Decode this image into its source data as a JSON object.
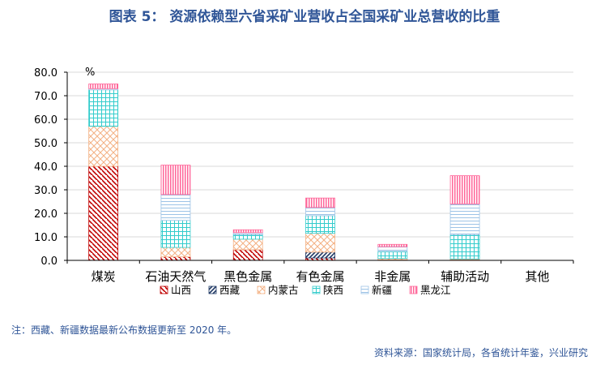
{
  "title": "图表 5： 资源依赖型六省采矿业营收占全国采矿业总营收的比重",
  "note": "注：西藏、新疆数据最新公布数据更新至 2020 年。",
  "source": "资料来源：国家统计局，各省统计年鉴，兴业研究",
  "chart_data": {
    "type": "bar",
    "stacked": true,
    "unit_label": "%",
    "ylim": [
      0,
      80
    ],
    "yticks": [
      "0.0",
      "10.0",
      "20.0",
      "30.0",
      "40.0",
      "50.0",
      "60.0",
      "70.0",
      "80.0"
    ],
    "grid": true,
    "legend_position": "bottom",
    "categories": [
      "煤炭",
      "石油天然气",
      "黑色金属",
      "有色金属",
      "非金属",
      "辅助活动",
      "其他"
    ],
    "series": [
      {
        "name": "山西",
        "color": "#c00000",
        "pattern": "diag-down",
        "values": [
          40.0,
          1.5,
          4.5,
          1.0,
          0.3,
          0.3,
          0
        ]
      },
      {
        "name": "西藏",
        "color": "#1f3864",
        "pattern": "diag-up",
        "values": [
          0,
          0,
          0,
          2.5,
          0,
          0,
          0
        ]
      },
      {
        "name": "内蒙古",
        "color": "#f4b183",
        "pattern": "cross",
        "values": [
          17.0,
          4.0,
          4.5,
          8.0,
          0.5,
          0.3,
          0
        ]
      },
      {
        "name": "陕西",
        "color": "#33cccc",
        "pattern": "grid",
        "values": [
          15.5,
          11.5,
          2.0,
          7.5,
          3.0,
          10.4,
          0
        ]
      },
      {
        "name": "新疆",
        "color": "#9dc3e6",
        "pattern": "hlines",
        "values": [
          0.5,
          11.0,
          0.8,
          3.5,
          2.0,
          13.0,
          0
        ]
      },
      {
        "name": "黑龙江",
        "color": "#ff6699",
        "pattern": "vlines",
        "values": [
          2.0,
          12.5,
          1.2,
          4.0,
          1.0,
          12.0,
          0
        ]
      }
    ]
  }
}
